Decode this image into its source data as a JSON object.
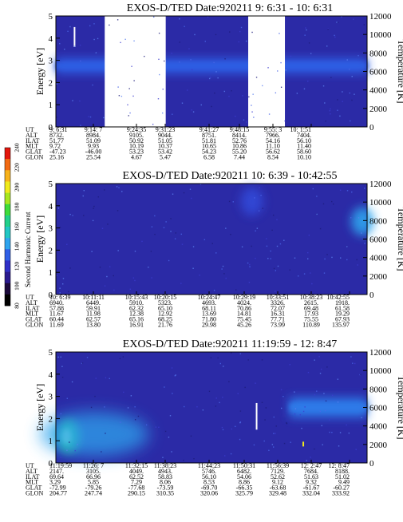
{
  "colorbar": {
    "title": "Second Harmonic Current",
    "ticks": [
      "80",
      "100",
      "120",
      "140",
      "160",
      "180",
      "200",
      "220",
      "240"
    ],
    "colors": [
      "#000000",
      "#1c0a3c",
      "#2a1a8f",
      "#2f2fc8",
      "#2f5fe6",
      "#2ea4ee",
      "#22c7c4",
      "#22d08a",
      "#3fdc3a",
      "#a8e61f",
      "#f0ea1c",
      "#f7b21a",
      "#f26a12",
      "#e3160c"
    ]
  },
  "ephemeris_row_labels": [
    "UT",
    "ALT",
    "ILAT",
    "MLT",
    "GLAT",
    "GLON"
  ],
  "energy_axis": {
    "label": "Energy [eV]",
    "ticks": [
      "0",
      "1",
      "2",
      "3",
      "4",
      "5"
    ],
    "range": [
      0,
      5
    ]
  },
  "temperature_axis": {
    "label": "Temperature [K]",
    "ticks": [
      "0",
      "2000",
      "4000",
      "6000",
      "8000",
      "10000",
      "12000"
    ],
    "range": [
      0,
      12000
    ]
  },
  "chart_data": [
    {
      "type": "heatmap",
      "title": "EXOS-D/TED   Date:920211   9: 6:31 - 10: 6:31",
      "ylabel": "Energy [eV]",
      "ylabel_right": "Temperature [K]",
      "ylim": [
        0,
        5
      ],
      "ylim_right": [
        0,
        12000
      ],
      "data_gaps": [
        [
          0.157,
          0.353
        ],
        [
          0.618,
          0.736
        ]
      ],
      "features": [
        {
          "kind": "band",
          "x_from": 0.0,
          "x_to": 1.0,
          "energy_center": 2.75,
          "energy_halfwidth": 0.35,
          "color": "#2d5fe4"
        },
        {
          "kind": "spike",
          "x": 0.06,
          "energy_from": 3.6,
          "energy_to": 4.5,
          "color": "#ffffff"
        }
      ],
      "ephemeris": [
        {
          "UT": "9: 6:31",
          "ALT": "8732.",
          "ILAT": "51.77",
          "MLT": "9.72",
          "GLAT": "-47.23",
          "GLON": "25.16"
        },
        {
          "UT": "9:14: 7",
          "ALT": "8984.",
          "ILAT": "51.09",
          "MLT": "9.93",
          "GLAT": "-46.00",
          "GLON": "25.54"
        },
        {
          "UT": "9:24:35",
          "ALT": "9105.",
          "ILAT": "50.92",
          "MLT": "10.19",
          "GLAT": "53.23",
          "GLON": "4.67"
        },
        {
          "UT": "9:31:23",
          "ALT": "9044.",
          "ILAT": "51.05",
          "MLT": "10.37",
          "GLAT": "53.42",
          "GLON": "5.47"
        },
        {
          "UT": "9:41:27",
          "ALT": "8751.",
          "ILAT": "51.81",
          "MLT": "10.65",
          "GLAT": "54.23",
          "GLON": "6.58"
        },
        {
          "UT": "9:48:15",
          "ALT": "8414.",
          "ILAT": "52.76",
          "MLT": "10.86",
          "GLAT": "55.20",
          "GLON": "7.44"
        },
        {
          "UT": "9:55: 3",
          "ALT": "7966.",
          "ILAT": "54.16",
          "MLT": "11.10",
          "GLAT": "56.62",
          "GLON": "8.54"
        },
        {
          "UT": "10: 1:51",
          "ALT": "7404.",
          "ILAT": "56.10",
          "MLT": "11.40",
          "GLAT": "58.60",
          "GLON": "10.10"
        }
      ]
    },
    {
      "type": "heatmap",
      "title": "EXOS-D/TED   Date:920211   10: 6:39 - 10:42:55",
      "ylabel": "Energy [eV]",
      "ylabel_right": "Temperature [K]",
      "ylim": [
        0,
        5
      ],
      "ylim_right": [
        0,
        12000
      ],
      "data_gaps": [],
      "features": [
        {
          "kind": "blob",
          "x": 0.985,
          "energy": 3.3,
          "color": "#2ea4ee"
        },
        {
          "kind": "blob",
          "x": 0.63,
          "energy": 4.2,
          "color": "#3348d8"
        }
      ],
      "ephemeris": [
        {
          "UT": "10: 6:39",
          "ALT": "6940.",
          "ILAT": "57.88",
          "MLT": "11.67",
          "GLAT": "60.44",
          "GLON": "11.69"
        },
        {
          "UT": "10:11:11",
          "ALT": "6449.",
          "ILAT": "59.91",
          "MLT": "11.98",
          "GLAT": "62.57",
          "GLON": "13.80"
        },
        {
          "UT": "10:15:43",
          "ALT": "5910.",
          "ILAT": "62.32",
          "MLT": "12.38",
          "GLAT": "65.16",
          "GLON": "16.91"
        },
        {
          "UT": "10:20:15",
          "ALT": "5323.",
          "ILAT": "65.10",
          "MLT": "12.92",
          "GLAT": "68.25",
          "GLON": "21.76"
        },
        {
          "UT": "10:24:47",
          "ALT": "4693.",
          "ILAT": "68.11",
          "MLT": "13.69",
          "GLAT": "71.80",
          "GLON": "29.98"
        },
        {
          "UT": "10:29:19",
          "ALT": "4024.",
          "ILAT": "70.86",
          "MLT": "14.81",
          "GLAT": "75.45",
          "GLON": "45.26"
        },
        {
          "UT": "10:33:51",
          "ALT": "3326.",
          "ILAT": "72.07",
          "MLT": "16.31",
          "GLAT": "77.71",
          "GLON": "73.99"
        },
        {
          "UT": "10:38:23",
          "ALT": "2615.",
          "ILAT": "69.48",
          "MLT": "17.93",
          "GLAT": "75.55",
          "GLON": "110.89"
        },
        {
          "UT": "10:42:55",
          "ALT": "1918.",
          "ILAT": "61.58",
          "MLT": "19.29",
          "GLAT": "67.93",
          "GLON": "135.97"
        }
      ]
    },
    {
      "type": "heatmap",
      "title": "EXOS-D/TED   Date:920211   11:19:59 - 12: 8:47",
      "ylabel": "Energy [eV]",
      "ylabel_right": "Temperature [K]",
      "ylim": [
        0,
        5
      ],
      "ylim_right": [
        0,
        12000
      ],
      "data_gaps": [],
      "features": [
        {
          "kind": "hotspot",
          "x": 0.04,
          "energy": 1.2,
          "color": "#22d08a"
        },
        {
          "kind": "spread",
          "x_from": 0.0,
          "x_to": 0.35,
          "energy_from": 0.3,
          "energy_to": 2.3,
          "color": "#2ea4ee"
        },
        {
          "kind": "band",
          "x_from": 0.75,
          "x_to": 1.0,
          "energy_center": 2.5,
          "energy_halfwidth": 0.45,
          "color": "#2f7ae8"
        },
        {
          "kind": "spike",
          "x": 0.645,
          "energy_from": 1.5,
          "energy_to": 2.7,
          "color": "#ffffff"
        },
        {
          "kind": "dot",
          "x": 0.795,
          "energy": 0.85,
          "color": "#f0ea1c"
        }
      ],
      "ephemeris": [
        {
          "UT": "11:19:59",
          "ALT": "2147.",
          "ILAT": "69.64",
          "MLT": "3.29",
          "GLAT": "-72.99",
          "GLON": "204.77"
        },
        {
          "UT": "11:26: 7",
          "ALT": "3105.",
          "ILAT": "66.96",
          "MLT": "5.85",
          "GLAT": "-79.26",
          "GLON": "247.74"
        },
        {
          "UT": "11:32:15",
          "ALT": "4049.",
          "ILAT": "62.52",
          "MLT": "7.29",
          "GLAT": "-77.68",
          "GLON": "290.15"
        },
        {
          "UT": "11:38:23",
          "ALT": "4943.",
          "ILAT": "58.83",
          "MLT": "8.06",
          "GLAT": "-73.59",
          "GLON": "310.35"
        },
        {
          "UT": "11:44:23",
          "ALT": "5746.",
          "ILAT": "56.10",
          "MLT": "8.53",
          "GLAT": "-69.70",
          "GLON": "320.06"
        },
        {
          "UT": "11:50:31",
          "ALT": "6482.",
          "ILAT": "54.06",
          "MLT": "8.86",
          "GLAT": "-66.35",
          "GLON": "325.79"
        },
        {
          "UT": "11:56:39",
          "ALT": "7129.",
          "ILAT": "52.62",
          "MLT": "9.12",
          "GLAT": "-63.68",
          "GLON": "329.48"
        },
        {
          "UT": "12: 2:47",
          "ALT": "7684.",
          "ILAT": "51.63",
          "MLT": "9.32",
          "GLAT": "-61.67",
          "GLON": "332.04"
        },
        {
          "UT": "12: 8:47",
          "ALT": "8188.",
          "ILAT": "51.02",
          "MLT": "9.49",
          "GLAT": "-60.27",
          "GLON": "333.92"
        }
      ]
    }
  ]
}
